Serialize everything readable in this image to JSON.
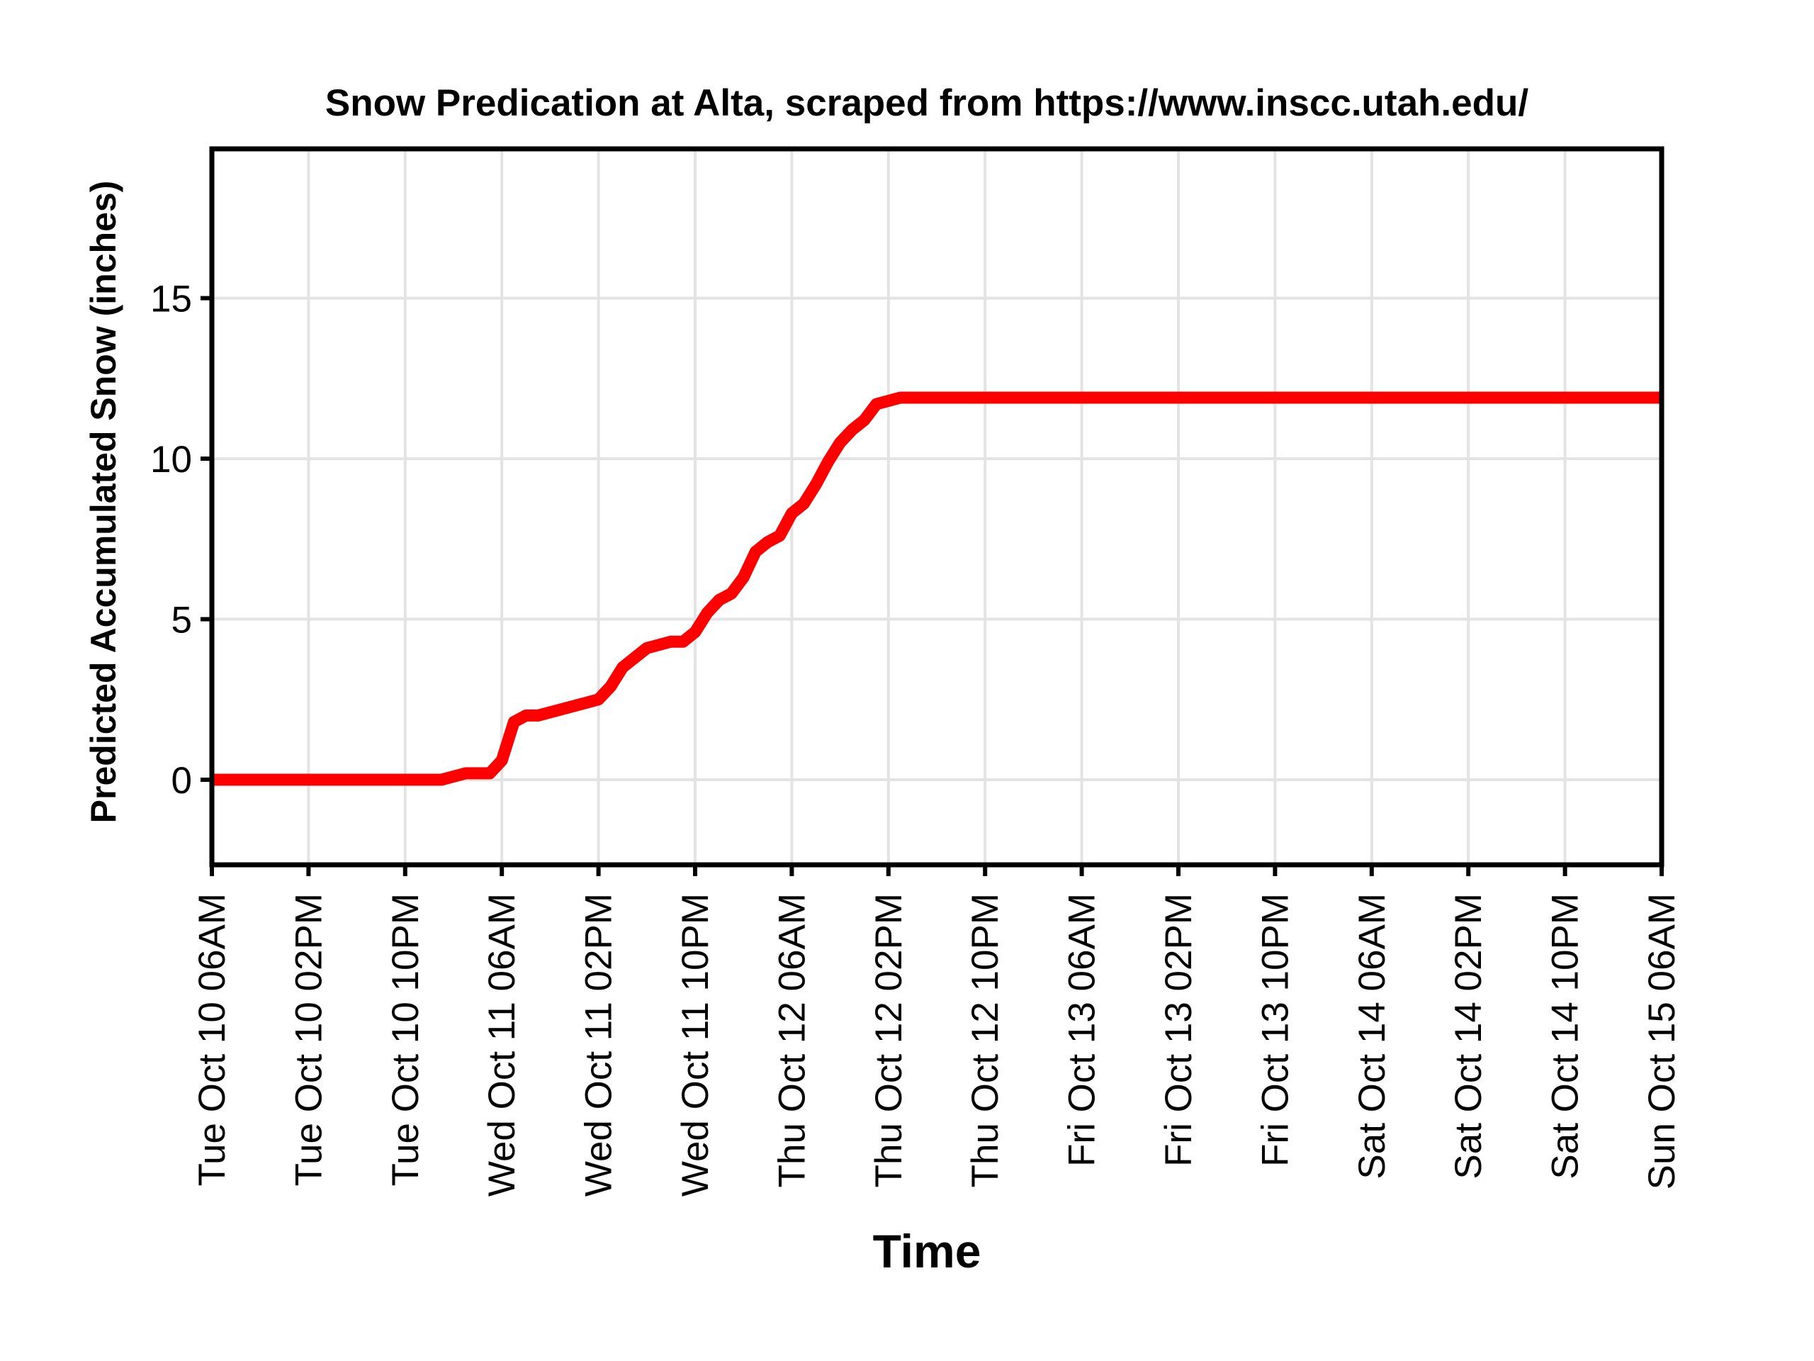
{
  "chart_data": {
    "type": "line",
    "title": "Snow Predication at Alta, scraped from https://www.inscc.utah.edu/",
    "xlabel": "Time",
    "ylabel": "Predicted Accumulated Snow (inches)",
    "ylim": [
      -2.65,
      19.65
    ],
    "yticks": [
      0,
      5,
      10,
      15
    ],
    "ytick_labels": [
      "0",
      "5",
      "10",
      "15"
    ],
    "xticks": [
      "2023-10-10T06:00",
      "2023-10-10T14:00",
      "2023-10-10T22:00",
      "2023-10-11T06:00",
      "2023-10-11T14:00",
      "2023-10-11T22:00",
      "2023-10-12T06:00",
      "2023-10-12T14:00",
      "2023-10-12T22:00",
      "2023-10-13T06:00",
      "2023-10-13T14:00",
      "2023-10-13T22:00",
      "2023-10-14T06:00",
      "2023-10-14T14:00",
      "2023-10-14T22:00",
      "2023-10-15T06:00"
    ],
    "xtick_labels": [
      "Tue Oct 10 06AM",
      "Tue Oct 10 02PM",
      "Tue Oct 10 10PM",
      "Wed Oct 11 06AM",
      "Wed Oct 11 02PM",
      "Wed Oct 11 10PM",
      "Thu Oct 12 06AM",
      "Thu Oct 12 02PM",
      "Thu Oct 12 10PM",
      "Fri Oct 13 06AM",
      "Fri Oct 13 02PM",
      "Fri Oct 13 10PM",
      "Sat Oct 14 06AM",
      "Sat Oct 14 02PM",
      "Sat Oct 14 10PM",
      "Sun Oct 15 06AM"
    ],
    "xlim": [
      "2023-10-10T06:00",
      "2023-10-15T06:00"
    ],
    "grid": true,
    "series": [
      {
        "color": "#ff0000",
        "points": [
          [
            "2023-10-10T06:00",
            0.0
          ],
          [
            "2023-10-11T01:00",
            0.0
          ],
          [
            "2023-10-11T03:00",
            0.2
          ],
          [
            "2023-10-11T05:00",
            0.2
          ],
          [
            "2023-10-11T06:00",
            0.6
          ],
          [
            "2023-10-11T07:00",
            1.8
          ],
          [
            "2023-10-11T08:00",
            2.0
          ],
          [
            "2023-10-11T09:00",
            2.0
          ],
          [
            "2023-10-11T13:00",
            2.4
          ],
          [
            "2023-10-11T14:00",
            2.5
          ],
          [
            "2023-10-11T15:00",
            2.9
          ],
          [
            "2023-10-11T16:00",
            3.5
          ],
          [
            "2023-10-11T18:00",
            4.1
          ],
          [
            "2023-10-11T20:00",
            4.3
          ],
          [
            "2023-10-11T21:00",
            4.3
          ],
          [
            "2023-10-11T22:00",
            4.6
          ],
          [
            "2023-10-11T23:00",
            5.2
          ],
          [
            "2023-10-12T00:00",
            5.6
          ],
          [
            "2023-10-12T01:00",
            5.8
          ],
          [
            "2023-10-12T02:00",
            6.3
          ],
          [
            "2023-10-12T03:00",
            7.1
          ],
          [
            "2023-10-12T04:00",
            7.4
          ],
          [
            "2023-10-12T05:00",
            7.6
          ],
          [
            "2023-10-12T06:00",
            8.3
          ],
          [
            "2023-10-12T07:00",
            8.6
          ],
          [
            "2023-10-12T08:00",
            9.2
          ],
          [
            "2023-10-12T09:00",
            9.9
          ],
          [
            "2023-10-12T10:00",
            10.5
          ],
          [
            "2023-10-12T11:00",
            10.9
          ],
          [
            "2023-10-12T12:00",
            11.2
          ],
          [
            "2023-10-12T13:00",
            11.7
          ],
          [
            "2023-10-12T15:00",
            11.9
          ],
          [
            "2023-10-15T06:00",
            11.9
          ]
        ]
      }
    ]
  }
}
